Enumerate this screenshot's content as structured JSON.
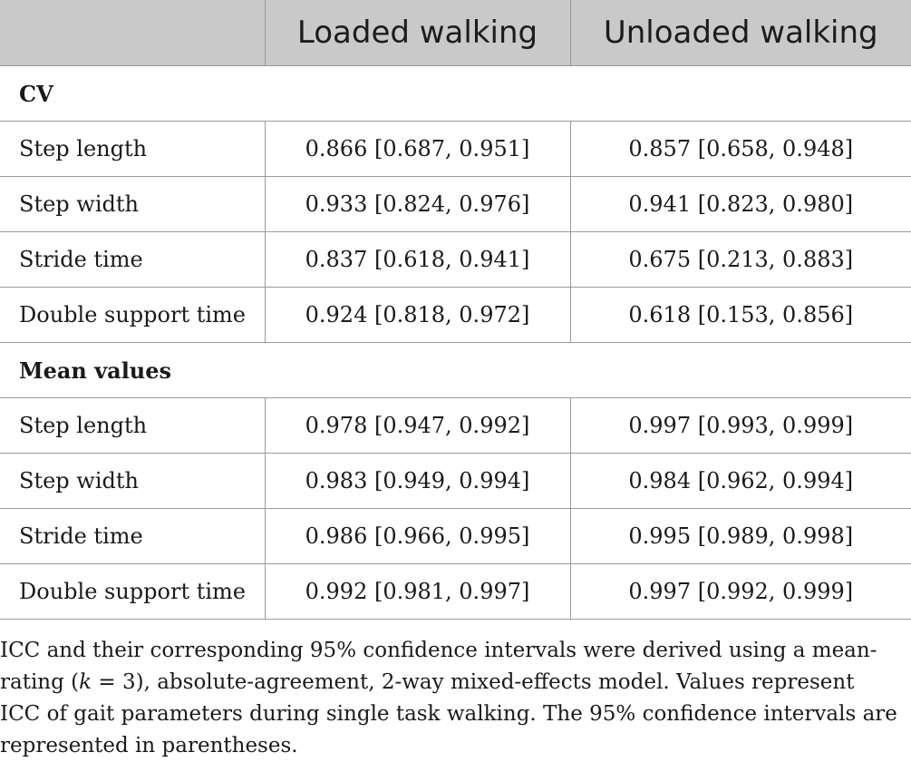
{
  "table": {
    "headers": [
      "",
      "Loaded walking",
      "Unloaded walking"
    ],
    "sections": [
      {
        "title": "CV",
        "rows": [
          {
            "label": "Step length",
            "loaded": "0.866 [0.687, 0.951]",
            "unloaded": "0.857 [0.658, 0.948]"
          },
          {
            "label": "Step width",
            "loaded": "0.933 [0.824, 0.976]",
            "unloaded": "0.941 [0.823, 0.980]"
          },
          {
            "label": "Stride time",
            "loaded": "0.837 [0.618, 0.941]",
            "unloaded": "0.675 [0.213, 0.883]"
          },
          {
            "label": "Double support time",
            "loaded": "0.924 [0.818, 0.972]",
            "unloaded": "0.618 [0.153, 0.856]"
          }
        ]
      },
      {
        "title": "Mean values",
        "rows": [
          {
            "label": "Step length",
            "loaded": "0.978 [0.947, 0.992]",
            "unloaded": "0.997 [0.993, 0.999]"
          },
          {
            "label": "Step width",
            "loaded": "0.983 [0.949, 0.994]",
            "unloaded": "0.984 [0.962, 0.994]"
          },
          {
            "label": "Stride time",
            "loaded": "0.986 [0.966, 0.995]",
            "unloaded": "0.995 [0.989, 0.998]"
          },
          {
            "label": "Double support time",
            "loaded": "0.992 [0.981, 0.997]",
            "unloaded": "0.997 [0.992, 0.999]"
          }
        ]
      }
    ]
  },
  "footnote": {
    "before_k": "ICC and their corresponding 95% confidence intervals were derived using a mean-rating (",
    "k_var": "k",
    "after_k": " = 3), absolute-agreement, 2-way mixed-effects model. Values represent ICC of gait parameters during single task walking. The 95% confidence intervals are represented in parentheses."
  },
  "colors": {
    "header_bg": "#c9c9c9",
    "border": "#9a9a9a",
    "text": "#1a1a1a"
  }
}
